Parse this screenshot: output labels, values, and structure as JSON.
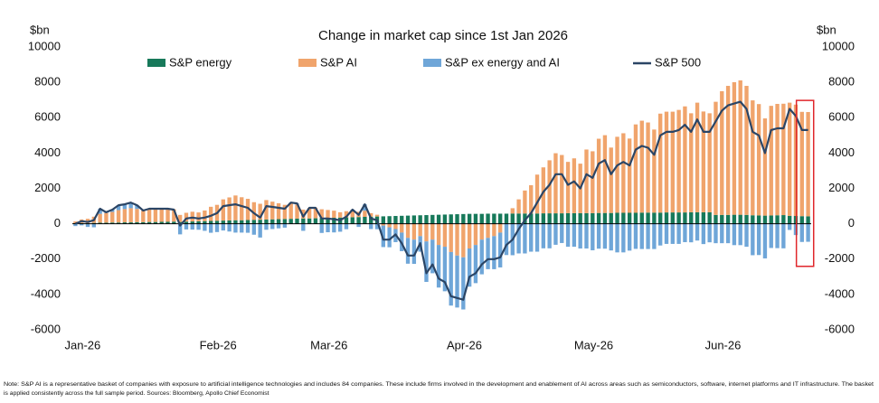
{
  "chart_data": {
    "type": "bar",
    "stacked": true,
    "title": "Change in market cap since 1st Jan 2026",
    "y_label": "$bn",
    "y2_label": "$bn",
    "ylim": [
      -6000,
      10000
    ],
    "yticks": [
      -6000,
      -4000,
      -2000,
      0,
      2000,
      4000,
      6000,
      8000,
      10000
    ],
    "y2lim": [
      -6000,
      10000
    ],
    "y2ticks": [
      -6000,
      -4000,
      -2000,
      0,
      2000,
      4000,
      6000,
      8000,
      10000
    ],
    "categories": [
      "Jan-26",
      null,
      null,
      null,
      null,
      null,
      null,
      null,
      null,
      null,
      null,
      null,
      null,
      null,
      null,
      null,
      null,
      null,
      null,
      null,
      null,
      null,
      "Feb-26",
      null,
      null,
      null,
      null,
      null,
      null,
      null,
      null,
      null,
      null,
      null,
      null,
      null,
      null,
      null,
      null,
      null,
      "Mar-26",
      null,
      null,
      null,
      null,
      null,
      null,
      null,
      null,
      null,
      null,
      null,
      null,
      null,
      null,
      null,
      null,
      null,
      null,
      null,
      null,
      null,
      "Apr-26",
      null,
      null,
      null,
      null,
      null,
      null,
      null,
      null,
      null,
      null,
      null,
      null,
      null,
      null,
      null,
      null,
      null,
      null,
      null,
      null,
      "May-26",
      null,
      null,
      null,
      null,
      null,
      null,
      null,
      null,
      null,
      null,
      null,
      null,
      null,
      null,
      null,
      null,
      null,
      null,
      null,
      null,
      "Jun-26",
      null,
      null,
      null,
      null,
      null,
      null,
      null,
      null,
      null,
      null,
      null,
      null,
      null,
      null,
      null
    ],
    "series": [
      {
        "name": "S&P energy",
        "color": "#17795a",
        "type": "bar",
        "values": [
          30,
          40,
          30,
          50,
          60,
          60,
          70,
          70,
          80,
          80,
          90,
          90,
          100,
          100,
          110,
          110,
          120,
          100,
          120,
          130,
          140,
          150,
          160,
          170,
          180,
          190,
          200,
          200,
          210,
          220,
          230,
          240,
          250,
          260,
          270,
          280,
          290,
          300,
          300,
          310,
          320,
          330,
          340,
          350,
          360,
          370,
          380,
          390,
          400,
          410,
          420,
          430,
          440,
          450,
          460,
          470,
          480,
          490,
          500,
          510,
          520,
          530,
          540,
          550,
          560,
          560,
          560,
          570,
          570,
          570,
          570,
          580,
          580,
          580,
          580,
          580,
          590,
          590,
          590,
          590,
          600,
          600,
          600,
          600,
          600,
          610,
          610,
          610,
          620,
          620,
          620,
          620,
          630,
          630,
          630,
          630,
          640,
          640,
          640,
          640,
          650,
          650,
          650,
          650,
          500,
          500,
          500,
          510,
          510,
          500,
          480,
          470,
          460,
          470,
          480,
          490,
          450,
          440,
          430,
          420
        ]
      },
      {
        "name": "S&P AI",
        "color": "#f0a46c",
        "type": "bar",
        "values": [
          100,
          200,
          250,
          350,
          500,
          550,
          600,
          700,
          750,
          800,
          750,
          650,
          700,
          750,
          700,
          700,
          700,
          400,
          500,
          550,
          500,
          600,
          800,
          900,
          1200,
          1300,
          1400,
          1300,
          1200,
          1000,
          900,
          1100,
          1000,
          900,
          800,
          900,
          800,
          500,
          600,
          600,
          500,
          450,
          400,
          300,
          350,
          400,
          300,
          350,
          200,
          100,
          -100,
          -200,
          -300,
          -500,
          -800,
          -900,
          -700,
          -1000,
          -900,
          -1200,
          -1300,
          -1600,
          -1800,
          -1900,
          -1400,
          -1200,
          -900,
          -800,
          -700,
          -500,
          0,
          300,
          800,
          1300,
          1600,
          2200,
          2600,
          3000,
          3400,
          3300,
          2900,
          3100,
          2800,
          3600,
          3500,
          4200,
          4400,
          3700,
          4300,
          4500,
          4200,
          5000,
          5200,
          5100,
          4700,
          5600,
          5700,
          5700,
          5800,
          6000,
          5600,
          6200,
          5700,
          5600,
          6400,
          7000,
          7300,
          7500,
          7600,
          7300,
          6500,
          6300,
          5500,
          6200,
          6300,
          6300,
          6400,
          6300,
          5900,
          5900
        ]
      },
      {
        "name": "S&P ex energy and AI",
        "color": "#6fa6d8",
        "type": "bar",
        "values": [
          -130,
          -90,
          -180,
          -200,
          290,
          40,
          130,
          280,
          270,
          320,
          210,
          10,
          50,
          0,
          40,
          40,
          -20,
          -600,
          -320,
          -330,
          -340,
          -400,
          -510,
          -470,
          -380,
          -440,
          -500,
          -500,
          -510,
          -620,
          -780,
          -340,
          -300,
          -260,
          -220,
          20,
          60,
          -400,
          0,
          -10,
          -520,
          -480,
          -490,
          -450,
          -310,
          30,
          -180,
          360,
          -300,
          -310,
          -1220,
          -1130,
          -740,
          -1050,
          -1460,
          -1370,
          -880,
          -2290,
          -1900,
          -2410,
          -2520,
          -3030,
          -2940,
          -2950,
          -2160,
          -2160,
          -1960,
          -1770,
          -1870,
          -1970,
          -1770,
          -1780,
          -1680,
          -1680,
          -1580,
          -1580,
          -1390,
          -1390,
          -1190,
          -1090,
          -1300,
          -1300,
          -1400,
          -1400,
          -1500,
          -1410,
          -1410,
          -1510,
          -1620,
          -1620,
          -1520,
          -1420,
          -1430,
          -1430,
          -1430,
          -1230,
          -1140,
          -1140,
          -1140,
          -1040,
          -1050,
          -950,
          -1150,
          -1050,
          -1100,
          -1100,
          -1100,
          -1210,
          -1210,
          -1300,
          -1780,
          -1770,
          -1960,
          -1370,
          -1380,
          -1390,
          -350,
          -640,
          -1030,
          -1020
        ]
      },
      {
        "name": "S&P 500",
        "color": "#2b4565",
        "type": "line",
        "values": [
          0,
          150,
          100,
          200,
          850,
          650,
          800,
          1050,
          1100,
          1200,
          1050,
          750,
          850,
          850,
          850,
          850,
          800,
          -100,
          300,
          350,
          300,
          350,
          450,
          600,
          1000,
          1050,
          1100,
          1000,
          900,
          600,
          350,
          1000,
          950,
          900,
          850,
          1200,
          1150,
          400,
          900,
          900,
          300,
          300,
          250,
          200,
          400,
          800,
          500,
          1100,
          300,
          200,
          -900,
          -900,
          -600,
          -1100,
          -1800,
          -1800,
          -1100,
          -2800,
          -2300,
          -3100,
          -3300,
          -4100,
          -4200,
          -4300,
          -3000,
          -2800,
          -2300,
          -2000,
          -2000,
          -1900,
          -1200,
          -900,
          -300,
          200,
          600,
          1200,
          1800,
          2200,
          2800,
          2800,
          2200,
          2400,
          2000,
          2800,
          2600,
          3400,
          3600,
          2800,
          3300,
          3500,
          3300,
          4200,
          4400,
          4300,
          3900,
          5000,
          5200,
          5200,
          5300,
          5600,
          5200,
          5900,
          5200,
          5200,
          5800,
          6400,
          6700,
          6800,
          6900,
          6500,
          5200,
          5000,
          4000,
          5300,
          5400,
          5400,
          6500,
          6100,
          5300,
          5300
        ]
      }
    ],
    "footnote": [
      "Note: S&P AI is a representative basket of companies with exposure to artificial intelligence technologies and includes 84 companies. These include firms involved in the development and enablement of AI across areas such as semiconductors, software, internet platforms and IT infrastructure. The basket",
      "is applied consistently across the full sample period. Sources: Bloomberg, Apollo Chief Economist"
    ]
  }
}
